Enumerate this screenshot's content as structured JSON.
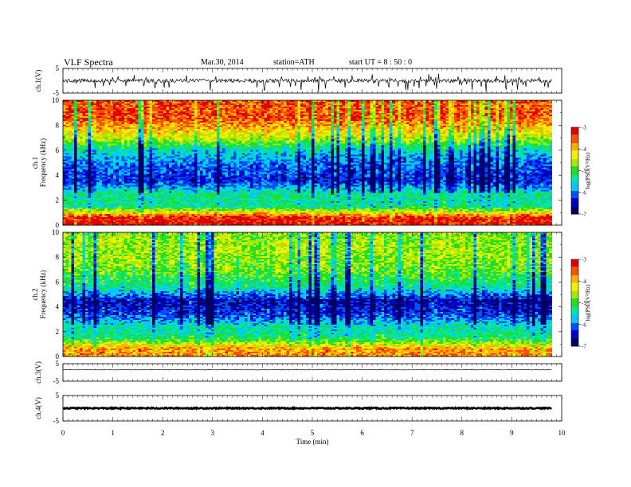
{
  "header": {
    "title": "VLF  Spectra",
    "date": "Mar.30, 2014",
    "station": "station=ATH",
    "start": "start  UT  =   8 : 50 : 0"
  },
  "colors": {
    "colormap": [
      "#000060",
      "#0000c8",
      "#0050ff",
      "#00c8ff",
      "#00e8a0",
      "#20e020",
      "#a8e800",
      "#f0f000",
      "#ffb000",
      "#ff5000",
      "#e00000",
      "#ffffff"
    ],
    "trace": "#000000"
  },
  "chart_data": {
    "type": "heatmap",
    "x": {
      "label": "Time  (min)",
      "range": [
        0,
        10
      ],
      "ticks": [
        "0",
        "1",
        "2",
        "3",
        "4",
        "5",
        "6",
        "7",
        "8",
        "9",
        "10"
      ],
      "data_end": 9.8
    },
    "panels": [
      {
        "kind": "waveform",
        "ylabel": "ch.1(V)",
        "ylim": [
          -5,
          5
        ],
        "ticks": [
          "5",
          "-5"
        ],
        "level": 0,
        "noise": "high"
      },
      {
        "kind": "spectrogram",
        "ylabel": "ch.1\nFrequency  (kHz)",
        "ylim": [
          0,
          10
        ],
        "ticks": [
          "10",
          "8",
          "6",
          "4",
          "2",
          "0"
        ],
        "colorbar": {
          "label": "log(PSD(V²/Hz)",
          "range": [
            -7,
            -3
          ],
          "ticks": [
            "-3",
            "-4",
            "-5",
            "-6",
            "-7"
          ]
        },
        "profile": [
          {
            "f": 0.6,
            "level": -3.2
          },
          {
            "f": 1.5,
            "level": -5.3
          },
          {
            "f": 2.5,
            "level": -5.3
          },
          {
            "f": 3.5,
            "level": -6.3
          },
          {
            "f": 5.0,
            "level": -6.0
          },
          {
            "f": 6.0,
            "level": -5.5
          },
          {
            "f": 7.0,
            "level": -4.5
          },
          {
            "f": 8.5,
            "level": -3.5
          },
          {
            "f": 10.0,
            "level": -3.5
          }
        ]
      },
      {
        "kind": "spectrogram",
        "ylabel": "ch.2\nFrequency  (kHz)",
        "ylim": [
          0,
          10
        ],
        "ticks": [
          "10",
          "8",
          "6",
          "4",
          "2",
          "0"
        ],
        "colorbar": {
          "label": "log(PSD(V²/Hz)",
          "range": [
            -7,
            -3
          ],
          "ticks": [
            "-3",
            "-4",
            "-5",
            "-6",
            "-7"
          ]
        },
        "profile": [
          {
            "f": 0.6,
            "level": -3.8
          },
          {
            "f": 1.5,
            "level": -5.2
          },
          {
            "f": 2.5,
            "level": -5.5
          },
          {
            "f": 3.5,
            "level": -6.3
          },
          {
            "f": 4.5,
            "level": -6.5
          },
          {
            "f": 5.5,
            "level": -5.4
          },
          {
            "f": 7.0,
            "level": -4.8
          },
          {
            "f": 8.5,
            "level": -4.6
          },
          {
            "f": 10.0,
            "level": -4.7
          }
        ]
      },
      {
        "kind": "waveform",
        "ylabel": "ch.3(V)",
        "ylim": [
          -5,
          5
        ],
        "ticks": [
          "5",
          "-5"
        ],
        "level": 1.5,
        "noise": "low"
      },
      {
        "kind": "waveform",
        "ylabel": "ch.4(V)",
        "ylim": [
          -5,
          5
        ],
        "ticks": [
          "5",
          "-5"
        ],
        "level": 0,
        "noise": "band"
      }
    ]
  }
}
